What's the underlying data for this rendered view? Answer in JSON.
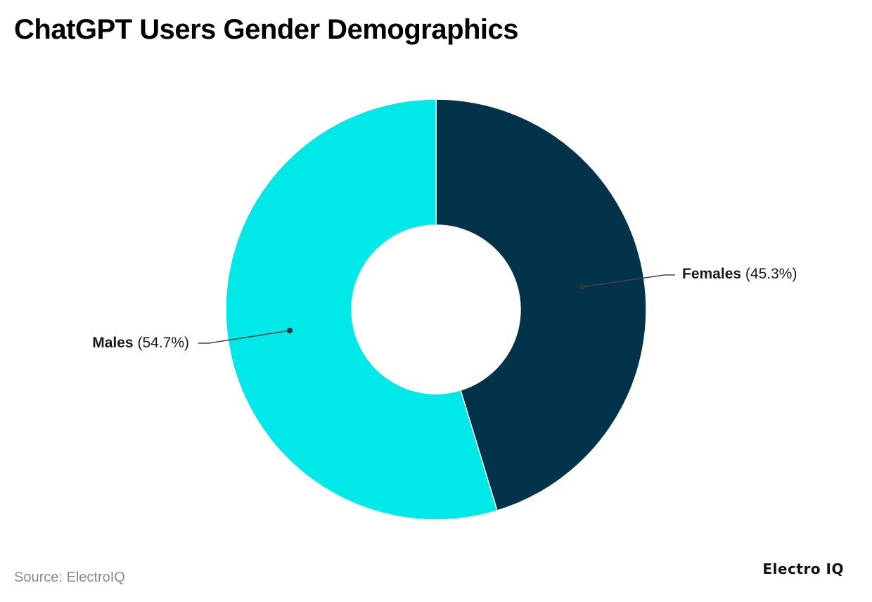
{
  "header": {
    "title": "ChatGPT Users Gender Demographics"
  },
  "footer": {
    "source": "Source: ElectroIQ",
    "brand": "Electro IQ"
  },
  "labels": {
    "female": {
      "name": "Females",
      "pct": "(45.3%)"
    },
    "male": {
      "name": "Males",
      "pct": "(54.7%)"
    }
  },
  "colors": {
    "females": "#02334B",
    "males": "#00E8E8",
    "connector": "#444444",
    "background": "#FFFFFF"
  },
  "chart_data": {
    "type": "pie",
    "variant": "donut",
    "title": "ChatGPT Users Gender Demographics",
    "categories": [
      "Females",
      "Males"
    ],
    "values": [
      45.3,
      54.7
    ],
    "unit": "%",
    "colors": [
      "#02334B",
      "#00E8E8"
    ],
    "start_angle": "12 o'clock, clockwise",
    "data_labels": [
      "Females (45.3%)",
      "Males (54.7%)"
    ],
    "legend": "none (direct labels with leader lines)",
    "source": "Source: ElectroIQ"
  }
}
